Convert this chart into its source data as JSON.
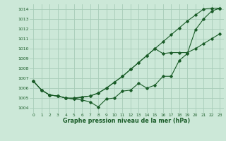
{
  "bg_color": "#cce8d8",
  "line_color": "#1a5c28",
  "grid_color": "#a8ccb8",
  "title": "Graphe pression niveau de la mer (hPa)",
  "ylim": [
    1003.5,
    1014.5
  ],
  "xlim": [
    -0.5,
    23.5
  ],
  "yticks": [
    1004,
    1005,
    1006,
    1007,
    1008,
    1009,
    1010,
    1011,
    1012,
    1013,
    1014
  ],
  "xticks": [
    0,
    1,
    2,
    3,
    4,
    5,
    6,
    7,
    8,
    9,
    10,
    11,
    12,
    13,
    14,
    15,
    16,
    17,
    18,
    19,
    20,
    21,
    22,
    23
  ],
  "series1": [
    1006.7,
    1005.8,
    1005.3,
    1005.2,
    1005.0,
    1004.9,
    1004.8,
    1004.6,
    1004.1,
    1004.9,
    1005.0,
    1005.7,
    1005.8,
    1006.5,
    1006.0,
    1006.3,
    1007.2,
    1007.2,
    1008.8,
    1009.5,
    1011.9,
    1013.0,
    1013.8,
    1014.1
  ],
  "series2": [
    1006.7,
    1005.8,
    1005.3,
    1005.2,
    1005.0,
    1005.0,
    1005.1,
    1005.2,
    1005.5,
    1006.0,
    1006.6,
    1007.2,
    1007.9,
    1008.6,
    1009.3,
    1010.0,
    1010.7,
    1011.4,
    1012.1,
    1012.8,
    1013.4,
    1014.0,
    1014.1,
    1014.1
  ],
  "series3": [
    1006.7,
    1005.8,
    1005.3,
    1005.2,
    1005.0,
    1004.9,
    1005.1,
    1005.2,
    1005.5,
    1006.0,
    1006.6,
    1007.2,
    1007.9,
    1008.6,
    1009.3,
    1010.0,
    1009.5,
    1009.6,
    1009.6,
    1009.6,
    1010.0,
    1010.5,
    1011.0,
    1011.5
  ]
}
